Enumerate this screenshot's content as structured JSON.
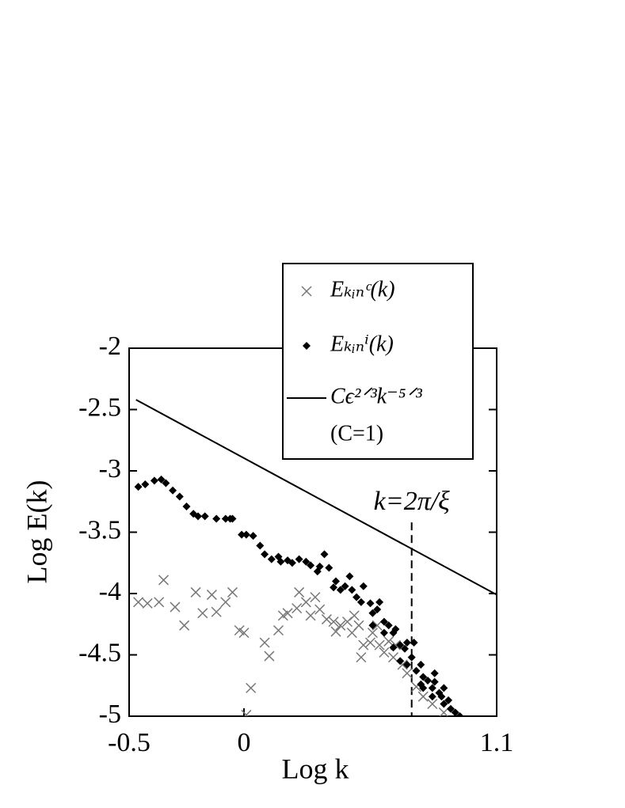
{
  "chart_data": {
    "type": "scatter",
    "x_label": "Log k",
    "y_label": "Log E(k)",
    "xlim": [
      -0.5,
      1.1
    ],
    "ylim": [
      -5,
      -2
    ],
    "xticks": [
      -0.5,
      0,
      1.1
    ],
    "yticks": [
      -2,
      -2.5,
      -3,
      -3.5,
      -4,
      -4.5,
      -5
    ],
    "legend": "upper right",
    "legend_note": "(C=1)",
    "series": [
      {
        "name": "Eₖᵢₙᶜ(k)",
        "marker": "x",
        "color": "#777777",
        "x": [
          -0.46,
          -0.42,
          -0.37,
          -0.35,
          -0.3,
          -0.26,
          -0.21,
          -0.18,
          -0.14,
          -0.12,
          -0.08,
          -0.05,
          -0.02,
          0.0,
          0.03,
          0.01,
          0.09,
          0.11,
          0.15,
          0.17,
          0.19,
          0.23,
          0.24,
          0.27,
          0.29,
          0.31,
          0.33,
          0.36,
          0.39,
          0.4,
          0.42,
          0.45,
          0.47,
          0.48,
          0.5,
          0.51,
          0.52,
          0.55,
          0.56,
          0.58,
          0.59,
          0.61,
          0.63,
          0.65,
          0.66,
          0.69,
          0.71,
          0.75,
          0.78,
          0.82,
          0.87
        ],
        "values": [
          -4.07,
          -4.08,
          -4.07,
          -3.89,
          -4.11,
          -4.26,
          -3.99,
          -4.16,
          -4.01,
          -4.15,
          -4.07,
          -3.99,
          -4.3,
          -4.32,
          -4.77,
          -4.99,
          -4.4,
          -4.51,
          -4.3,
          -4.18,
          -4.16,
          -4.12,
          -3.99,
          -4.07,
          -4.18,
          -4.03,
          -4.13,
          -4.21,
          -4.23,
          -4.31,
          -4.26,
          -4.23,
          -4.32,
          -4.18,
          -4.26,
          -4.52,
          -4.42,
          -4.4,
          -4.32,
          -4.26,
          -4.42,
          -4.48,
          -4.39,
          -4.52,
          -4.42,
          -4.58,
          -4.65,
          -4.76,
          -4.84,
          -4.9,
          -4.97
        ]
      },
      {
        "name": "Eₖᵢₙⁱ(k)",
        "marker": "diamond",
        "color": "#000000",
        "x": [
          -0.46,
          -0.43,
          -0.39,
          -0.36,
          -0.34,
          -0.31,
          -0.28,
          -0.25,
          -0.22,
          -0.2,
          -0.17,
          -0.12,
          -0.08,
          -0.06,
          -0.05,
          -0.01,
          0.01,
          0.04,
          0.07,
          0.09,
          0.12,
          0.15,
          0.16,
          0.19,
          0.21,
          0.24,
          0.27,
          0.29,
          0.32,
          0.33,
          0.35,
          0.37,
          0.39,
          0.4,
          0.42,
          0.44,
          0.46,
          0.47,
          0.49,
          0.51,
          0.52,
          0.55,
          0.56,
          0.58,
          0.59,
          0.61,
          0.63,
          0.65,
          0.66,
          0.68,
          0.7,
          0.71,
          0.73,
          0.74,
          0.75,
          0.77,
          0.78,
          0.8,
          0.82,
          0.83,
          0.85,
          0.86,
          0.87,
          0.89,
          0.9,
          0.92,
          0.94,
          0.78,
          0.82,
          0.83,
          0.71,
          0.68,
          0.65,
          0.61,
          0.56,
          0.77,
          0.87
        ],
        "values": [
          -3.13,
          -3.11,
          -3.08,
          -3.07,
          -3.1,
          -3.16,
          -3.21,
          -3.29,
          -3.35,
          -3.37,
          -3.37,
          -3.39,
          -3.39,
          -3.39,
          -3.39,
          -3.52,
          -3.52,
          -3.53,
          -3.61,
          -3.68,
          -3.72,
          -3.7,
          -3.74,
          -3.73,
          -3.75,
          -3.72,
          -3.74,
          -3.77,
          -3.82,
          -3.78,
          -3.68,
          -3.79,
          -3.95,
          -3.9,
          -3.97,
          -3.94,
          -3.86,
          -3.97,
          -4.03,
          -4.07,
          -3.94,
          -4.08,
          -4.16,
          -4.13,
          -4.07,
          -4.23,
          -4.26,
          -4.32,
          -4.29,
          -4.42,
          -4.45,
          -4.4,
          -4.52,
          -4.4,
          -4.63,
          -4.58,
          -4.68,
          -4.71,
          -4.77,
          -4.72,
          -4.81,
          -4.84,
          -4.9,
          -4.87,
          -4.94,
          -4.97,
          -5.0,
          -4.77,
          -4.84,
          -4.65,
          -4.58,
          -4.55,
          -4.44,
          -4.32,
          -4.26,
          -4.74,
          -4.77
        ]
      },
      {
        "name": "Cϵ²ᐟ³k⁻⁵ᐟ³",
        "marker": "line",
        "color": "#000000",
        "x": [
          -0.47,
          1.1
        ],
        "values": [
          -2.42,
          -4.01
        ]
      }
    ],
    "reference_line": {
      "x": 0.73,
      "y": [
        -3.42,
        -5
      ],
      "label": "k=2π/ξ"
    }
  }
}
